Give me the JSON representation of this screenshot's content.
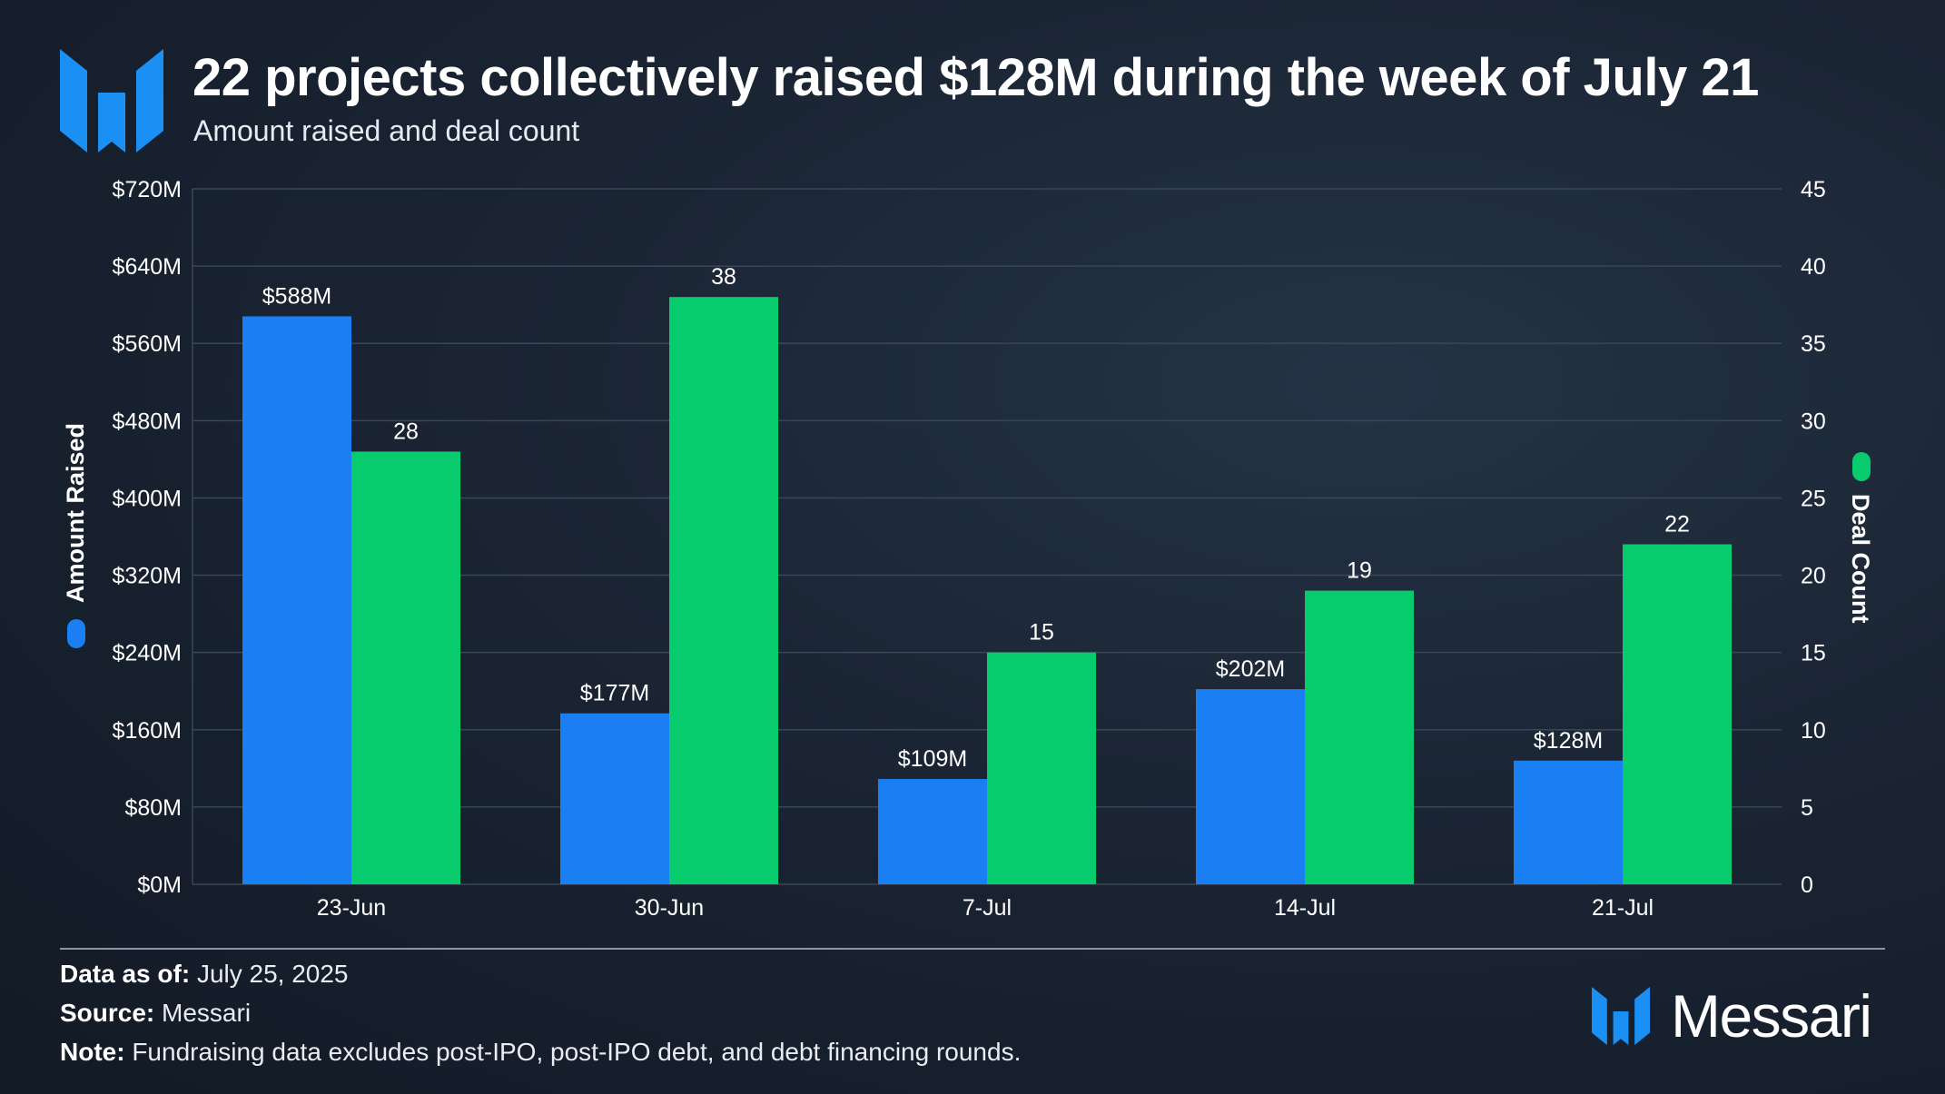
{
  "header": {
    "title": "22 projects collectively raised $128M during the week of July 21",
    "subtitle": "Amount raised and deal count",
    "logo_icon": "messari-m-logo-icon"
  },
  "colors": {
    "amount": "#1a7ff2",
    "deals": "#08cb6e",
    "grid": "#3a4656",
    "text": "#ffffff"
  },
  "chart_data": {
    "type": "bar",
    "title": "22 projects collectively raised $128M during the week of July 21",
    "subtitle": "Amount raised and deal count",
    "categories": [
      "23-Jun",
      "30-Jun",
      "7-Jul",
      "14-Jul",
      "21-Jul"
    ],
    "series": [
      {
        "name": "Amount Raised",
        "axis": "left",
        "unit": "USD millions",
        "values": [
          588,
          177,
          109,
          202,
          128
        ],
        "labels": [
          "$588M",
          "$177M",
          "$109M",
          "$202M",
          "$128M"
        ]
      },
      {
        "name": "Deal Count",
        "axis": "right",
        "values": [
          28,
          38,
          15,
          19,
          22
        ],
        "labels": [
          "28",
          "38",
          "15",
          "19",
          "22"
        ]
      }
    ],
    "y_left": {
      "label": "Amount Raised",
      "range": [
        0,
        720
      ],
      "ticks": [
        0,
        80,
        160,
        240,
        320,
        400,
        480,
        560,
        640,
        720
      ],
      "tick_labels": [
        "$0M",
        "$80M",
        "$160M",
        "$240M",
        "$320M",
        "$400M",
        "$480M",
        "$560M",
        "$640M",
        "$720M"
      ]
    },
    "y_right": {
      "label": "Deal Count",
      "range": [
        0,
        45
      ],
      "ticks": [
        0,
        5,
        10,
        15,
        20,
        25,
        30,
        35,
        40,
        45
      ],
      "tick_labels": [
        "0",
        "5",
        "10",
        "15",
        "20",
        "25",
        "30",
        "35",
        "40",
        "45"
      ]
    },
    "grid": true,
    "legend": "on-axes"
  },
  "footer": {
    "data_as_of_label": "Data as of:",
    "data_as_of_value": "July 25, 2025",
    "source_label": "Source:",
    "source_value": "Messari",
    "note_label": "Note:",
    "note_value": "Fundraising data excludes post-IPO, post-IPO debt, and debt financing rounds.",
    "brand_name": "Messari"
  }
}
